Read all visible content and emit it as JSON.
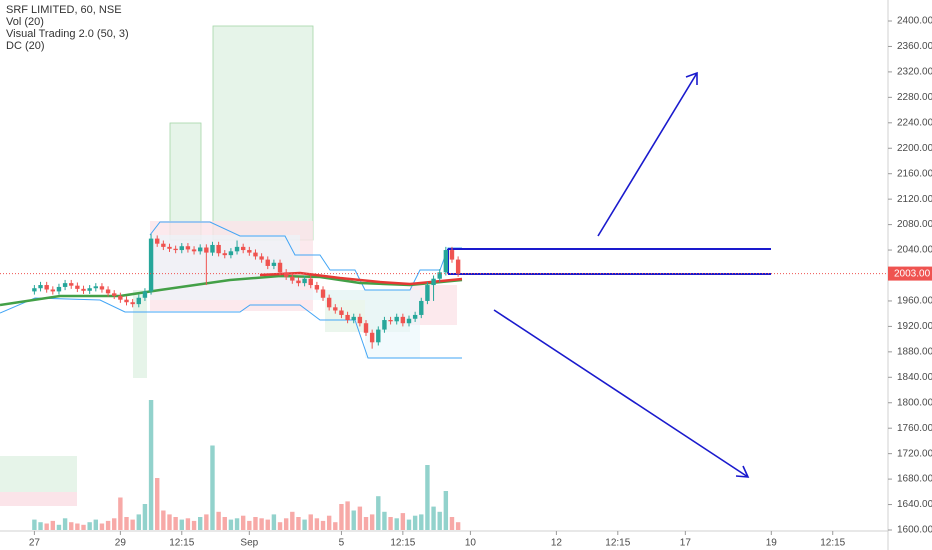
{
  "chart_data": {
    "type": "candlestick",
    "legend_lines": [
      "SRF LIMITED, 60, NSE",
      "Vol (20)",
      "Visual Trading 2.0 (50, 3)",
      "DC (20)"
    ],
    "up_color": "#26a69a",
    "down_color": "#ef5350",
    "open": [
      1975,
      1980,
      1985,
      1978,
      1975,
      1982,
      1988,
      1984,
      1979,
      1976,
      1980,
      1983,
      1978,
      1972,
      1968,
      1962,
      1958,
      1955,
      1965,
      1975,
      2058,
      2050,
      2045,
      2042,
      2040,
      2046,
      2041,
      2038,
      2044,
      2036,
      2048,
      2035,
      2032,
      2038,
      2045,
      2040,
      2036,
      2030,
      2025,
      2015,
      2020,
      2005,
      1998,
      1992,
      1988,
      1995,
      1985,
      1978,
      1965,
      1950,
      1945,
      1938,
      1930,
      1935,
      1925,
      1910,
      1895,
      1915,
      1930,
      1928,
      1935,
      1925,
      1932,
      1938,
      1960,
      1985,
      1995,
      2005,
      2040,
      2025
    ],
    "high": [
      1985,
      1990,
      1990,
      1983,
      1987,
      1993,
      1993,
      1989,
      1984,
      1985,
      1988,
      1988,
      1983,
      1977,
      1973,
      1967,
      1963,
      1970,
      1980,
      2065,
      2063,
      2055,
      2050,
      2047,
      2051,
      2051,
      2046,
      2049,
      2049,
      2053,
      2053,
      2040,
      2043,
      2055,
      2050,
      2045,
      2041,
      2035,
      2030,
      2025,
      2025,
      2010,
      2003,
      1997,
      2000,
      2000,
      1990,
      1983,
      1970,
      1955,
      1950,
      1943,
      1940,
      1940,
      1930,
      1915,
      1920,
      1935,
      1935,
      1940,
      1940,
      1937,
      1943,
      1965,
      1990,
      2000,
      2010,
      2045,
      2045,
      2030
    ],
    "low": [
      1970,
      1975,
      1973,
      1970,
      1970,
      1977,
      1979,
      1974,
      1971,
      1971,
      1975,
      1973,
      1967,
      1963,
      1957,
      1953,
      1950,
      1950,
      1960,
      1970,
      2045,
      2040,
      2037,
      2035,
      2035,
      2036,
      2033,
      2033,
      1985,
      2031,
      2030,
      2027,
      2027,
      2033,
      2035,
      2031,
      2025,
      2020,
      2010,
      2010,
      2000,
      1993,
      1987,
      1983,
      1983,
      1980,
      1973,
      1960,
      1945,
      1940,
      1933,
      1925,
      1925,
      1920,
      1905,
      1885,
      1890,
      1910,
      1923,
      1923,
      1920,
      1920,
      1927,
      1933,
      1955,
      1960,
      1990,
      2000,
      2020,
      1998
    ],
    "close": [
      1980,
      1985,
      1978,
      1975,
      1982,
      1988,
      1984,
      1979,
      1976,
      1980,
      1983,
      1978,
      1972,
      1968,
      1962,
      1958,
      1955,
      1965,
      1975,
      2058,
      2050,
      2045,
      2042,
      2040,
      2046,
      2041,
      2038,
      2044,
      2036,
      2048,
      2035,
      2032,
      2038,
      2045,
      2040,
      2036,
      2030,
      2025,
      2015,
      2020,
      2005,
      1998,
      1992,
      1988,
      1995,
      1985,
      1978,
      1965,
      1950,
      1945,
      1938,
      1930,
      1935,
      1925,
      1910,
      1895,
      1915,
      1930,
      1928,
      1935,
      1925,
      1932,
      1938,
      1960,
      1985,
      1995,
      2005,
      2040,
      2025,
      2003
    ],
    "volume": [
      8,
      6,
      5,
      7,
      4,
      9,
      6,
      5,
      4,
      6,
      8,
      5,
      7,
      9,
      25,
      10,
      8,
      12,
      20,
      100,
      40,
      15,
      12,
      10,
      8,
      9,
      7,
      10,
      12,
      65,
      14,
      10,
      8,
      9,
      11,
      7,
      10,
      9,
      8,
      12,
      6,
      9,
      14,
      10,
      8,
      12,
      9,
      7,
      11,
      6,
      20,
      22,
      15,
      18,
      10,
      12,
      26,
      14,
      10,
      9,
      13,
      8,
      11,
      12,
      50,
      18,
      14,
      30,
      10,
      6
    ],
    "volume_lim": [
      0,
      100
    ],
    "xlim": [
      -5.6,
      139
    ],
    "xticks": [
      {
        "value": 0,
        "label": "27"
      },
      {
        "value": 14,
        "label": "29"
      },
      {
        "value": 24,
        "label": "12:15"
      },
      {
        "value": 35,
        "label": "Sep"
      },
      {
        "value": 50,
        "label": "5"
      },
      {
        "value": 60,
        "label": "12:15"
      },
      {
        "value": 71,
        "label": "10"
      },
      {
        "value": 85,
        "label": "12"
      },
      {
        "value": 95,
        "label": "12:15"
      },
      {
        "value": 106,
        "label": "17"
      },
      {
        "value": 120,
        "label": "19"
      },
      {
        "value": 130,
        "label": "12:15"
      }
    ],
    "ylim": [
      1600,
      2400
    ],
    "yticks": [
      {
        "value": 1600,
        "label": "1600.00"
      },
      {
        "value": 1640,
        "label": "1640.00"
      },
      {
        "value": 1680,
        "label": "1680.00"
      },
      {
        "value": 1720,
        "label": "1720.00"
      },
      {
        "value": 1760,
        "label": "1760.00"
      },
      {
        "value": 1800,
        "label": "1800.00"
      },
      {
        "value": 1840,
        "label": "1840.00"
      },
      {
        "value": 1880,
        "label": "1880.00"
      },
      {
        "value": 1920,
        "label": "1920.00"
      },
      {
        "value": 1960,
        "label": "1960.00"
      },
      {
        "value": 2000,
        "label": "2000.00"
      },
      {
        "value": 2040,
        "label": "2040.00"
      },
      {
        "value": 2080,
        "label": "2080.00"
      },
      {
        "value": 2120,
        "label": "2120.00"
      },
      {
        "value": 2160,
        "label": "2160.00"
      },
      {
        "value": 2200,
        "label": "2200.00"
      },
      {
        "value": 2240,
        "label": "2240.00"
      },
      {
        "value": 2280,
        "label": "2280.00"
      },
      {
        "value": 2320,
        "label": "2320.00"
      },
      {
        "value": 2360,
        "label": "2360.00"
      },
      {
        "value": 2400,
        "label": "2400.00"
      }
    ],
    "last_price": {
      "value": 2003,
      "label": "2003.00"
    },
    "grid": false
  }
}
